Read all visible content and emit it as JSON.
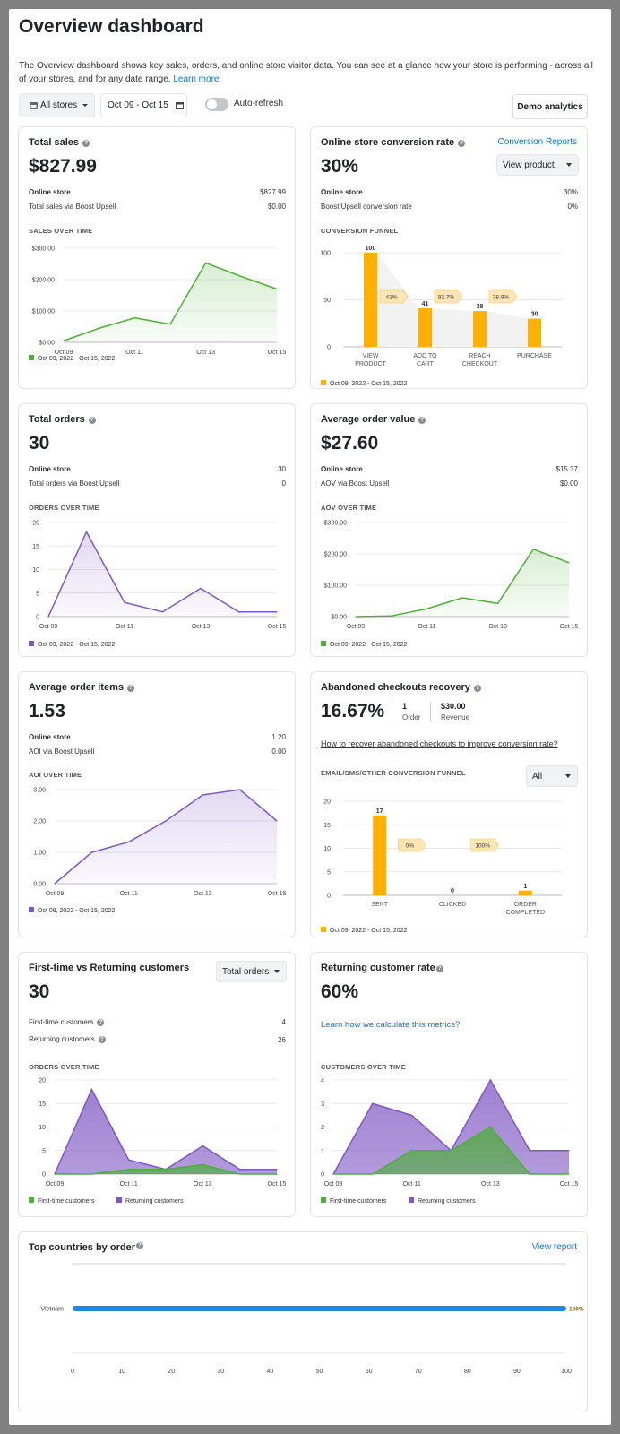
{
  "page": {
    "title": "Overview dashboard",
    "description": "The Overview dashboard shows key sales, orders, and online store visitor data. You can see at a glance how your store is performing - across all of your stores, and for any date range.",
    "learn_more": "Learn more"
  },
  "toolbar": {
    "store_select": "All stores",
    "date_range": "Oct 09 - Oct 15",
    "auto_refresh": "Auto-refresh",
    "auto_refresh_on": false,
    "demo_button": "Demo analytics"
  },
  "colors": {
    "green": "#4caf37",
    "purple": "#7e57c2",
    "orange": "#ffb000",
    "blue": "#1e88e5",
    "link": "#0a7ac8"
  },
  "total_sales": {
    "title": "Total sales",
    "value": "$827.99",
    "rows": [
      {
        "label": "Online store",
        "value": "$827.99"
      },
      {
        "label": "Total sales via Boost Upsell",
        "value": "$0.00"
      }
    ],
    "section": "SALES OVER TIME",
    "legend": "Oct 09, 2022 - Oct 15, 2022",
    "chart_data": {
      "type": "area",
      "x": [
        "Oct 09",
        "Oct 10",
        "Oct 11",
        "Oct 12",
        "Oct 13",
        "Oct 14",
        "Oct 15"
      ],
      "x_ticks": [
        "Oct 09",
        "Oct 11",
        "Oct 13",
        "Oct 15"
      ],
      "y_ticks": [
        "$0.00",
        "$100.00",
        "$200.00",
        "$300.00"
      ],
      "ylim": [
        0,
        300
      ],
      "series": [
        {
          "name": "Oct 09, 2022 - Oct 15, 2022",
          "values": [
            5,
            45,
            78,
            58,
            253,
            210,
            170
          ]
        }
      ]
    }
  },
  "conversion": {
    "title": "Online store conversion rate",
    "link": "Conversion Reports",
    "value": "30%",
    "select": "View product",
    "rows": [
      {
        "label": "Online store",
        "value": "30%"
      },
      {
        "label": "Boost Upsell conversion rate",
        "value": "0%"
      }
    ],
    "section": "CONVERSION FUNNEL",
    "legend": "Oct 09, 2022 - Oct 15, 2022",
    "chart_data": {
      "type": "bar",
      "categories": [
        "VIEW PRODUCT",
        "ADD TO CART",
        "REACH CHECKOUT",
        "PURCHASE"
      ],
      "values": [
        100,
        41,
        38,
        30
      ],
      "step_rates": [
        "41%",
        "92.7%",
        "78.9%"
      ],
      "y_ticks": [
        "0",
        "50",
        "100"
      ],
      "ylim": [
        0,
        100
      ]
    }
  },
  "total_orders": {
    "title": "Total orders",
    "value": "30",
    "rows": [
      {
        "label": "Online store",
        "value": "30"
      },
      {
        "label": "Total orders via Boost Upsell",
        "value": "0"
      }
    ],
    "section": "ORDERS OVER TIME",
    "legend": "Oct 09, 2022 - Oct 15, 2022",
    "chart_data": {
      "type": "area",
      "x": [
        "Oct 09",
        "Oct 10",
        "Oct 11",
        "Oct 12",
        "Oct 13",
        "Oct 14",
        "Oct 15"
      ],
      "x_ticks": [
        "Oct 09",
        "Oct 11",
        "Oct 13",
        "Oct 15"
      ],
      "y_ticks": [
        "0",
        "5",
        "10",
        "15",
        "20"
      ],
      "ylim": [
        0,
        20
      ],
      "series": [
        {
          "name": "Oct 09, 2022 - Oct 15, 2022",
          "values": [
            0,
            18,
            3,
            1,
            6,
            1,
            1
          ]
        }
      ]
    }
  },
  "aov": {
    "title": "Average order value",
    "value": "$27.60",
    "rows": [
      {
        "label": "Online store",
        "value": "$15.37"
      },
      {
        "label": "AOV via Boost Upsell",
        "value": "$0.00"
      }
    ],
    "section": "AOV OVER TIME",
    "legend": "Oct 09, 2022 - Oct 15, 2022",
    "chart_data": {
      "type": "area",
      "x": [
        "Oct 09",
        "Oct 10",
        "Oct 11",
        "Oct 12",
        "Oct 13",
        "Oct 14",
        "Oct 15"
      ],
      "x_ticks": [
        "Oct 09",
        "Oct 11",
        "Oct 13",
        "Oct 15"
      ],
      "y_ticks": [
        "$0.00",
        "$100.00",
        "$200.00",
        "$300.00"
      ],
      "ylim": [
        0,
        300
      ],
      "series": [
        {
          "name": "Oct 09, 2022 - Oct 15, 2022",
          "values": [
            0,
            2,
            25,
            60,
            42,
            215,
            172
          ]
        }
      ]
    }
  },
  "aoi": {
    "title": "Average order items",
    "value": "1.53",
    "rows": [
      {
        "label": "Online store",
        "value": "1.20"
      },
      {
        "label": "AOI via Boost Upsell",
        "value": "0.00"
      }
    ],
    "section": "AOI OVER TIME",
    "legend": "Oct 09, 2022 - Oct 15, 2022",
    "chart_data": {
      "type": "area",
      "x": [
        "Oct 09",
        "Oct 10",
        "Oct 11",
        "Oct 12",
        "Oct 13",
        "Oct 14",
        "Oct 15"
      ],
      "x_ticks": [
        "Oct 09",
        "Oct 11",
        "Oct 13",
        "Oct 15"
      ],
      "y_ticks": [
        "0.00",
        "1.00",
        "2.00",
        "3.00"
      ],
      "ylim": [
        0,
        3
      ],
      "series": [
        {
          "name": "Oct 09, 2022 - Oct 15, 2022",
          "values": [
            0,
            1,
            1.33,
            2,
            2.83,
            3,
            2
          ]
        }
      ]
    }
  },
  "abandoned": {
    "title": "Abandoned checkouts recovery",
    "value": "16.67%",
    "orders_value": "1",
    "orders_label": "Order",
    "revenue_value": "$30.00",
    "revenue_label": "Revenue",
    "link": "How to recover abandoned checkouts to improve conversion rate?",
    "section": "EMAIL/SMS/OTHER CONVERSION FUNNEL",
    "select": "All",
    "legend": "Oct 09, 2022 - Oct 15, 2022",
    "chart_data": {
      "type": "bar",
      "categories": [
        "SENT",
        "CLICKED",
        "ORDER COMPLETED"
      ],
      "values": [
        17,
        0,
        1
      ],
      "step_rates": [
        "0%",
        "100%"
      ],
      "y_ticks": [
        "0",
        "5",
        "10",
        "15",
        "20"
      ],
      "ylim": [
        0,
        20
      ]
    }
  },
  "first_vs_returning": {
    "title": "First-time vs Returning customers",
    "select": "Total orders",
    "value": "30",
    "rows": [
      {
        "label": "First-time customers",
        "value": "4"
      },
      {
        "label": "Returning customers",
        "value": "26"
      }
    ],
    "section": "ORDERS OVER TIME",
    "chart_data": {
      "type": "area",
      "x": [
        "Oct 09",
        "Oct 10",
        "Oct 11",
        "Oct 12",
        "Oct 13",
        "Oct 14",
        "Oct 15"
      ],
      "x_ticks": [
        "Oct 09",
        "Oct 11",
        "Oct 13",
        "Oct 15"
      ],
      "y_ticks": [
        "0",
        "5",
        "10",
        "15",
        "20"
      ],
      "ylim": [
        0,
        20
      ],
      "series": [
        {
          "name": "First-time customers",
          "values": [
            0,
            0,
            1,
            1,
            2,
            0,
            0
          ]
        },
        {
          "name": "Returning customers",
          "values": [
            0,
            18,
            3,
            1,
            6,
            1,
            1
          ]
        }
      ]
    }
  },
  "returning_rate": {
    "title": "Returning customer rate",
    "value": "60%",
    "link": "Learn how we calculate this metrics?",
    "section": "CUSTOMERS OVER TIME",
    "chart_data": {
      "type": "area",
      "x": [
        "Oct 09",
        "Oct 10",
        "Oct 11",
        "Oct 12",
        "Oct 13",
        "Oct 14",
        "Oct 15"
      ],
      "x_ticks": [
        "Oct 09",
        "Oct 11",
        "Oct 13",
        "Oct 15"
      ],
      "y_ticks": [
        "0",
        "1",
        "2",
        "3",
        "4"
      ],
      "ylim": [
        0,
        4
      ],
      "series": [
        {
          "name": "First-time customers",
          "values": [
            0,
            0,
            1,
            1,
            2,
            0,
            0
          ]
        },
        {
          "name": "Returning customers",
          "values": [
            0,
            3,
            2.5,
            1,
            4,
            1,
            1
          ]
        }
      ]
    }
  },
  "top_countries": {
    "title": "Top countries by order",
    "link": "View report",
    "chart_data": {
      "type": "bar",
      "orientation": "horizontal",
      "categories": [
        "Vietnam"
      ],
      "values": [
        100
      ],
      "value_labels": [
        "100%"
      ],
      "x_ticks": [
        "0",
        "10",
        "20",
        "30",
        "40",
        "50",
        "60",
        "70",
        "80",
        "90",
        "100"
      ],
      "xlim": [
        0,
        100
      ]
    }
  }
}
